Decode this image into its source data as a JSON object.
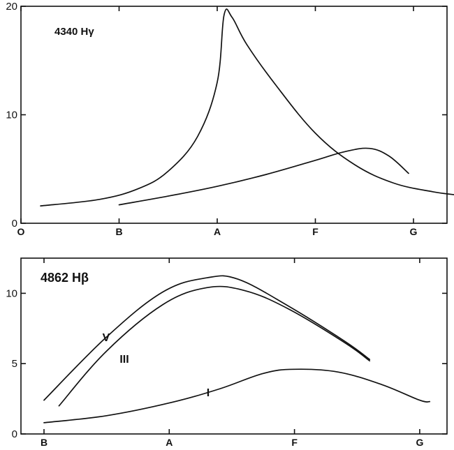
{
  "chart_data": [
    {
      "type": "line",
      "title": "4340 Hγ",
      "x_categories": [
        "O",
        "B",
        "A",
        "F",
        "G"
      ],
      "xlim": [
        0,
        4.6
      ],
      "ylim": [
        0,
        20
      ],
      "y_ticks": [
        0,
        10,
        20
      ],
      "grid": false,
      "series": [
        {
          "name": "",
          "x": [
            0.2,
            0.8,
            1.2,
            1.5,
            1.8,
            2.0,
            2.07,
            2.15,
            2.3,
            2.6,
            3.0,
            3.4,
            3.8,
            4.2,
            4.45
          ],
          "y": [
            1.6,
            2.2,
            3.2,
            4.8,
            8.0,
            13.0,
            19.2,
            19.0,
            16.5,
            12.7,
            8.3,
            5.4,
            3.7,
            2.9,
            2.6
          ]
        },
        {
          "name": "",
          "x": [
            1.0,
            1.5,
            2.0,
            2.5,
            3.0,
            3.3,
            3.55,
            3.75,
            3.95
          ],
          "y": [
            1.7,
            2.5,
            3.4,
            4.5,
            5.8,
            6.6,
            6.9,
            6.2,
            4.6
          ]
        }
      ]
    },
    {
      "type": "line",
      "title": "4862 Hβ",
      "x_categories": [
        "B",
        "A",
        "F",
        "G"
      ],
      "xlim": [
        0,
        3.2
      ],
      "ylim": [
        0,
        12.5
      ],
      "y_ticks": [
        0,
        5,
        10
      ],
      "grid": false,
      "series": [
        {
          "name": "V",
          "x": [
            0,
            0.5,
            0.95,
            1.3,
            1.55,
            1.95,
            2.4,
            2.6
          ],
          "y": [
            2.4,
            6.9,
            10.1,
            11.1,
            11.0,
            9.1,
            6.6,
            5.3
          ]
        },
        {
          "name": "III",
          "x": [
            0.12,
            0.5,
            0.95,
            1.3,
            1.6,
            1.95,
            2.4,
            2.6
          ],
          "y": [
            2.0,
            5.9,
            9.2,
            10.4,
            10.2,
            8.9,
            6.5,
            5.2
          ]
        },
        {
          "name": "I",
          "x": [
            0,
            0.5,
            1.0,
            1.4,
            1.75,
            2.0,
            2.35,
            2.7,
            3.0,
            3.08
          ],
          "y": [
            0.8,
            1.3,
            2.2,
            3.2,
            4.3,
            4.6,
            4.4,
            3.5,
            2.4,
            2.3
          ]
        }
      ]
    }
  ]
}
